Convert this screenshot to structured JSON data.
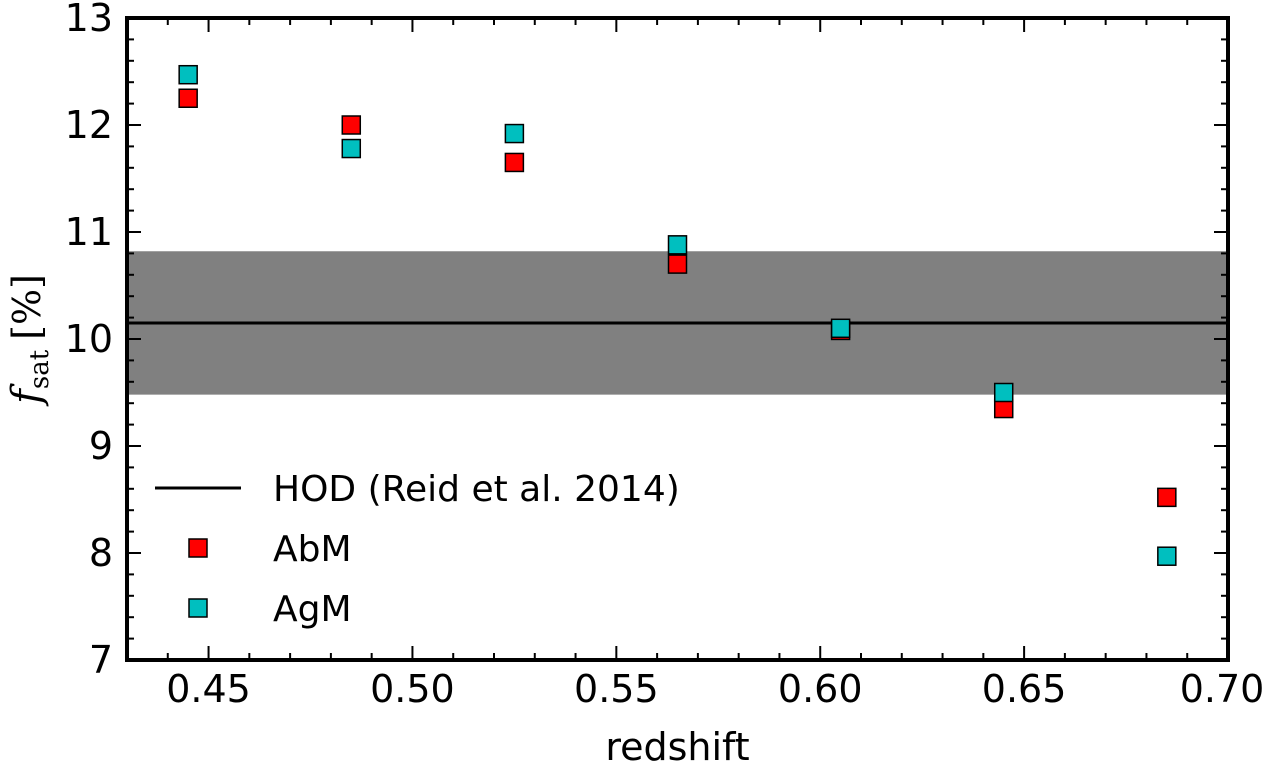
{
  "chart_data": {
    "type": "scatter",
    "xlabel": "redshift",
    "ylabel": {
      "main": "f",
      "sub": "sat",
      "unit": "[%]"
    },
    "xlim": [
      0.43,
      0.7
    ],
    "ylim": [
      7,
      13
    ],
    "xticks": [
      0.45,
      0.5,
      0.55,
      0.6,
      0.65,
      0.7
    ],
    "xtick_labels": [
      "0.45",
      "0.50",
      "0.55",
      "0.60",
      "0.65",
      "0.70"
    ],
    "yticks": [
      7,
      8,
      9,
      10,
      11,
      12,
      13
    ],
    "ytick_labels": [
      "7",
      "8",
      "9",
      "10",
      "11",
      "12",
      "13"
    ],
    "grid": false,
    "legend_position": "lower-left",
    "reference": {
      "name": "HOD (Reid et al. 2014)",
      "value": 10.15,
      "band": [
        9.48,
        10.82
      ],
      "line_color": "#000000",
      "band_color": "#808080"
    },
    "series": [
      {
        "name": "AbM",
        "color": "#ff0000",
        "x": [
          0.445,
          0.485,
          0.525,
          0.565,
          0.605,
          0.645,
          0.685
        ],
        "y": [
          12.25,
          12.0,
          11.65,
          10.7,
          10.08,
          9.35,
          8.52
        ]
      },
      {
        "name": "AgM",
        "color": "#00bfbf",
        "x": [
          0.445,
          0.485,
          0.525,
          0.565,
          0.605,
          0.645,
          0.685
        ],
        "y": [
          12.47,
          11.78,
          11.92,
          10.88,
          10.1,
          9.5,
          7.97
        ]
      }
    ]
  }
}
